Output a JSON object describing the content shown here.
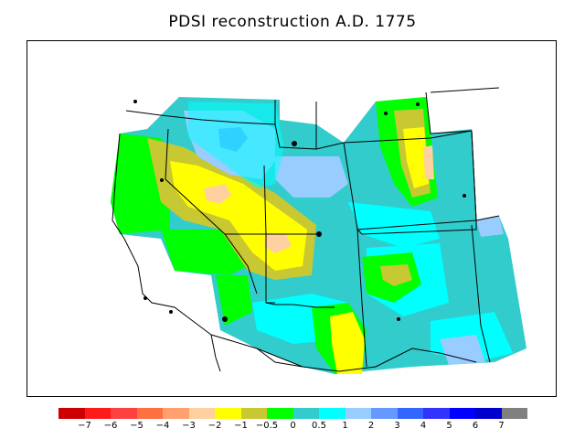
{
  "title": "PDSI reconstruction A.D. 1775",
  "map": {
    "region": "Western United States",
    "colors": {
      "land_outline": "#000000",
      "background": "#ffffff"
    }
  },
  "colorbar": {
    "colors": [
      "#cc0000",
      "#ff1a1a",
      "#ff4040",
      "#ff7040",
      "#ffa070",
      "#ffd0a0",
      "#ffff00",
      "#c8c832",
      "#00ff00",
      "#33cccc",
      "#00ffff",
      "#99ccff",
      "#6699ff",
      "#3366ff",
      "#3333ff",
      "#0000ff",
      "#0000cc",
      "#808080"
    ],
    "labels": [
      "−7",
      "−6",
      "−5",
      "−4",
      "−3",
      "−2",
      "−1",
      "−0.5",
      "0",
      "0.5",
      "1",
      "2",
      "3",
      "4",
      "5",
      "6",
      "7"
    ]
  }
}
